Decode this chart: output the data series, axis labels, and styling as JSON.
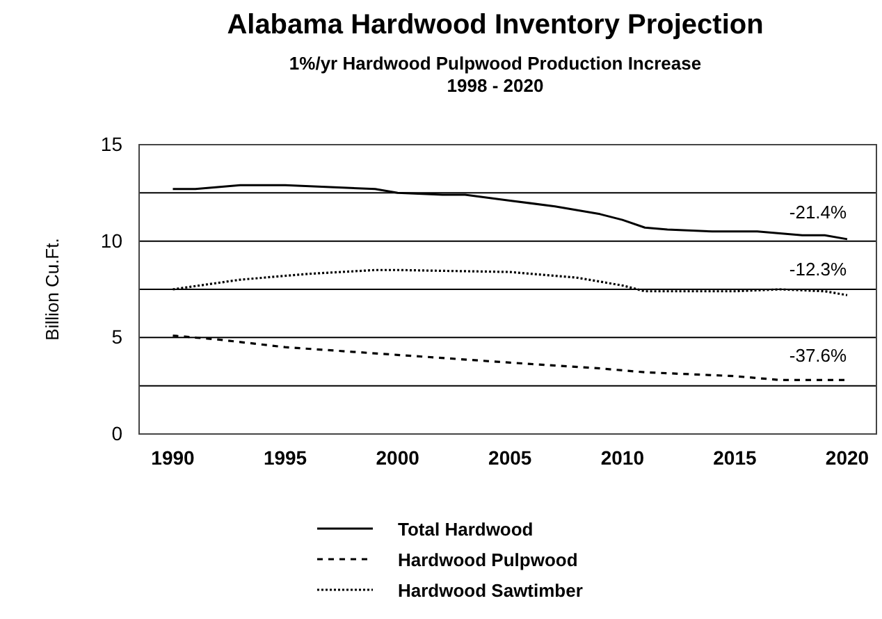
{
  "chart_data": {
    "type": "line",
    "title": "Alabama Hardwood Inventory Projection",
    "subtitle": "1%/yr Hardwood Pulpwood Production Increase\n1998 - 2020",
    "ylabel": "Billion Cu.Ft.",
    "xlim": [
      1988.5,
      2021.3
    ],
    "xticks": [
      1990,
      1995,
      2000,
      2005,
      2010,
      2015,
      2020
    ],
    "ylim": [
      0,
      15
    ],
    "yticks": [
      0,
      {
        "value": 2.5,
        "label": null
      },
      5,
      {
        "value": 7.5,
        "label": null
      },
      10,
      {
        "value": 12.5,
        "label": null
      },
      15
    ],
    "grid": "y",
    "legend": "bottom",
    "series": [
      {
        "name": "Total Hardwood",
        "color": "#000000",
        "line_style": "solid",
        "x": [
          1990,
          1991,
          1993,
          1995,
          1997,
          1999,
          2000,
          2002,
          2003,
          2005,
          2007,
          2009,
          2010,
          2011,
          2012,
          2014,
          2016,
          2018,
          2019,
          2020
        ],
        "values": [
          12.7,
          12.7,
          12.9,
          12.9,
          12.8,
          12.7,
          12.5,
          12.4,
          12.4,
          12.1,
          11.8,
          11.4,
          11.1,
          10.7,
          10.6,
          10.5,
          10.5,
          10.3,
          10.3,
          10.1
        ]
      },
      {
        "name": "Hardwood Pulpwood",
        "color": "#000000",
        "line_style": "dashed",
        "x": [
          1990,
          1992,
          1995,
          2000,
          2005,
          2009,
          2011,
          2015,
          2017,
          2020
        ],
        "values": [
          5.1,
          4.9,
          4.5,
          4.1,
          3.7,
          3.4,
          3.2,
          3.0,
          2.8,
          2.8
        ]
      },
      {
        "name": "Hardwood Sawtimber",
        "color": "#000000",
        "line_style": "dotted",
        "x": [
          1990,
          1993,
          1996,
          1999,
          2000,
          2005,
          2008,
          2010,
          2011,
          2015,
          2017,
          2019,
          2020
        ],
        "values": [
          7.5,
          8.0,
          8.3,
          8.5,
          8.5,
          8.4,
          8.1,
          7.7,
          7.4,
          7.4,
          7.5,
          7.4,
          7.2
        ]
      }
    ],
    "annotations": [
      "-21.4%",
      "-12.3%",
      "-37.6%"
    ]
  }
}
